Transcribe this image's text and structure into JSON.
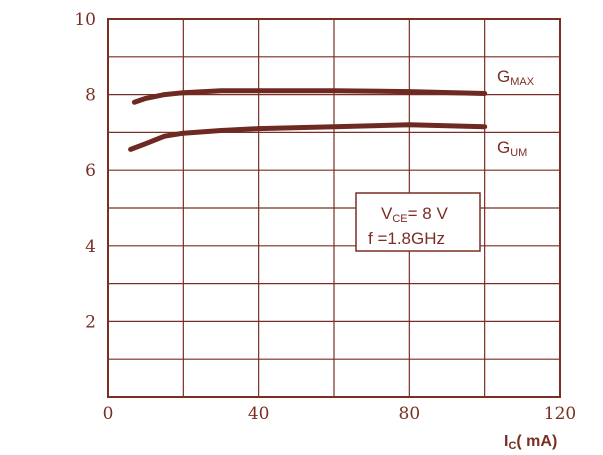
{
  "chart_data": {
    "type": "line",
    "xlim": [
      0,
      120
    ],
    "ylim": [
      0,
      10
    ],
    "x_ticks": [
      "0",
      "40",
      "80",
      "120"
    ],
    "y_ticks": [
      "2",
      "4",
      "6",
      "8",
      "10"
    ],
    "grid": true,
    "xlabel": {
      "main": "I",
      "sub": "C",
      "rest": "( mA)"
    },
    "series": [
      {
        "label_main": "G",
        "label_sub": "MAX",
        "x": [
          7,
          10,
          15,
          20,
          30,
          40,
          60,
          80,
          100
        ],
        "y": [
          7.8,
          7.9,
          8.0,
          8.05,
          8.1,
          8.1,
          8.1,
          8.08,
          8.03
        ]
      },
      {
        "label_main": "G",
        "label_sub": "UM",
        "x": [
          6,
          10,
          15,
          20,
          30,
          40,
          60,
          80,
          100
        ],
        "y": [
          6.55,
          6.7,
          6.9,
          6.98,
          7.05,
          7.1,
          7.15,
          7.2,
          7.15
        ]
      }
    ],
    "annotation": {
      "line1_main": "V",
      "line1_sub": "CE",
      "line1_rest": "= 8  V",
      "line2": "f  =1.8GHz"
    },
    "colors": {
      "ink": "#7a2e24",
      "curve": "#6e2a22",
      "background": "#ffffff"
    }
  }
}
